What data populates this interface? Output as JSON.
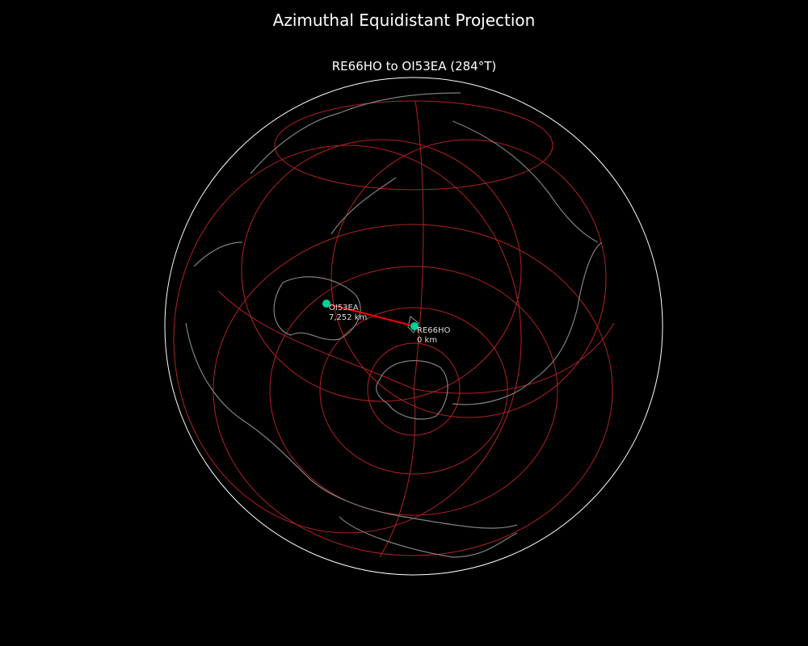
{
  "title": "Azimuthal Equidistant Projection",
  "subtitle": "RE66HO to OI53EA (284°T)",
  "colors": {
    "background": "#000000",
    "coast": "#808080",
    "grid": "#b22222",
    "path": "#ff0000",
    "marker": "#00d09a",
    "boundary": "#ffffff"
  },
  "points": [
    {
      "name": "RE66HO",
      "distance": "0 km"
    },
    {
      "name": "OI53EA",
      "distance": "7,252 km"
    }
  ],
  "bearing": "284°T"
}
